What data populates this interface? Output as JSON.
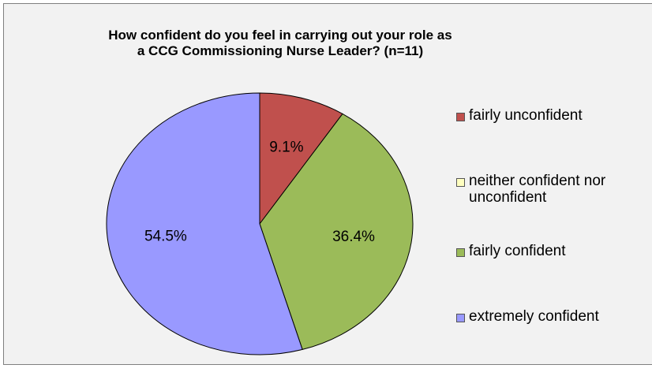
{
  "chart_data": {
    "type": "pie",
    "title_lines": [
      "How confident do you feel in carrying out your role as",
      "a CCG Commissioning Nurse Leader? (n=11)"
    ],
    "slices": [
      {
        "name": "fairly unconfident",
        "value": 9.1,
        "label": "9.1%",
        "color": "#c0504d"
      },
      {
        "name": "neither confident nor unconfident",
        "value": 0,
        "label": "",
        "color": "#ffffc0"
      },
      {
        "name": "fairly confident",
        "value": 36.4,
        "label": "36.4%",
        "color": "#9bbb59"
      },
      {
        "name": "extremely confident",
        "value": 54.5,
        "label": "54.5%",
        "color": "#9999ff"
      }
    ],
    "legend": {
      "position": "right",
      "entries": [
        {
          "lines": [
            "fairly unconfident"
          ],
          "color": "#c0504d"
        },
        {
          "lines": [
            "neither confident nor",
            "unconfident"
          ],
          "color": "#ffffc0"
        },
        {
          "lines": [
            "fairly confident"
          ],
          "color": "#9bbb59"
        },
        {
          "lines": [
            "extremely confident"
          ],
          "color": "#9999ff"
        }
      ]
    }
  }
}
